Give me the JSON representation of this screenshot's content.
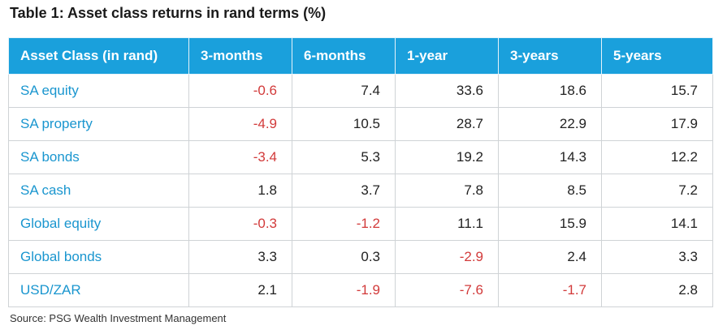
{
  "title": "Table 1: Asset class returns in rand terms (%)",
  "table": {
    "headers": [
      "Asset Class  (in rand)",
      "3-months",
      "6-months",
      "1-year",
      "3-years",
      "5-years"
    ],
    "rows": [
      {
        "label": "SA equity",
        "values": [
          "-0.6",
          "7.4",
          "33.6",
          "18.6",
          "15.7"
        ]
      },
      {
        "label": "SA property",
        "values": [
          "-4.9",
          "10.5",
          "28.7",
          "22.9",
          "17.9"
        ]
      },
      {
        "label": "SA bonds",
        "values": [
          "-3.4",
          "5.3",
          "19.2",
          "14.3",
          "12.2"
        ]
      },
      {
        "label": "SA cash",
        "values": [
          "1.8",
          "3.7",
          "7.8",
          "8.5",
          "7.2"
        ]
      },
      {
        "label": "Global equity",
        "values": [
          "-0.3",
          "-1.2",
          "11.1",
          "15.9",
          "14.1"
        ]
      },
      {
        "label": "Global bonds",
        "values": [
          "3.3",
          "0.3",
          "-2.9",
          "2.4",
          "3.3"
        ]
      },
      {
        "label": "USD/ZAR",
        "values": [
          "2.1",
          "-1.9",
          "-7.6",
          "-1.7",
          "2.8"
        ]
      }
    ]
  },
  "source": "Source: PSG Wealth Investment Management",
  "colors": {
    "header_bg": "#1aa0dc",
    "label_text": "#1a96cf",
    "negative_text": "#d23a3a"
  }
}
